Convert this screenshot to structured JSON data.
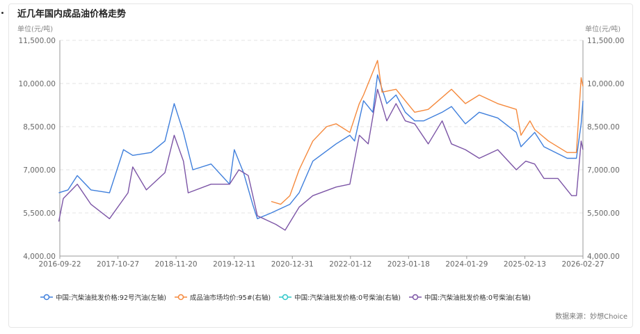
{
  "title": "近几年国内成品油价格走势",
  "unit_left": "单位(元/吨)",
  "unit_right": "单位(元/吨)",
  "source": "数据来源：妙想Choice",
  "chart_data": {
    "type": "line",
    "title": "近几年国内成品油价格走势",
    "ylim": [
      4000,
      11500
    ],
    "y2lim": [
      4000,
      11500
    ],
    "yticks": [
      "4,000.00",
      "5,500.00",
      "7,000.00",
      "8,500.00",
      "10,000.00",
      "11,500.00"
    ],
    "yticks_right": [
      "4,000.00",
      "5,500.00",
      "7,000.00",
      "8,500.00",
      "10,000.00",
      "11,500.00"
    ],
    "xticks": [
      "2016-09-22",
      "2017-10-27",
      "2018-11-20",
      "2019-12-11",
      "2020-12-31",
      "2022-01-12",
      "2023-01-18",
      "2024-01-29",
      "2025-02-13",
      "2026-02-27"
    ],
    "xlim": [
      "2016-09-22",
      "2026-02-27"
    ],
    "grid": true,
    "legend_placement": "bottom",
    "series": [
      {
        "name": "中国:汽柴油批发价格:92号汽油(左轴)",
        "color": "#3f7fdc",
        "axis": "left",
        "x": [
          "2016-09",
          "2016-11",
          "2017-01",
          "2017-04",
          "2017-08",
          "2017-11",
          "2018-01",
          "2018-05",
          "2018-08",
          "2018-10",
          "2018-12",
          "2019-02",
          "2019-06",
          "2019-10",
          "2019-11",
          "2020-01",
          "2020-03",
          "2020-04",
          "2020-07",
          "2020-11",
          "2021-01",
          "2021-04",
          "2021-09",
          "2021-12",
          "2022-01",
          "2022-03",
          "2022-05",
          "2022-06",
          "2022-08",
          "2022-10",
          "2022-12",
          "2023-02",
          "2023-04",
          "2023-08",
          "2023-10",
          "2024-01",
          "2024-04",
          "2024-08",
          "2024-12",
          "2025-01",
          "2025-04",
          "2025-06",
          "2025-11",
          "2026-01",
          "2026-02",
          "2026-02-27"
        ],
        "values": [
          6200,
          6300,
          6800,
          6300,
          6200,
          7700,
          7500,
          7600,
          8000,
          9300,
          8300,
          7000,
          7200,
          6500,
          7700,
          6900,
          5800,
          5300,
          5500,
          5800,
          6200,
          7300,
          7900,
          8200,
          8000,
          9400,
          9000,
          10300,
          9300,
          9600,
          9000,
          8700,
          8700,
          9000,
          9200,
          8600,
          9000,
          8800,
          8300,
          7800,
          8300,
          7800,
          7400,
          7400,
          8600,
          9400
        ]
      },
      {
        "name": "成品油市场均价:95#(右轴)",
        "color": "#f5893c",
        "axis": "right",
        "x": [
          "2020-07",
          "2020-09",
          "2020-11",
          "2021-01",
          "2021-04",
          "2021-07",
          "2021-09",
          "2021-12",
          "2022-02",
          "2022-03",
          "2022-06",
          "2022-07",
          "2022-10",
          "2022-12",
          "2023-02",
          "2023-05",
          "2023-10",
          "2024-01",
          "2024-04",
          "2024-08",
          "2024-12",
          "2025-01",
          "2025-03",
          "2025-04",
          "2025-07",
          "2025-11",
          "2026-01",
          "2026-02",
          "2026-02-27"
        ],
        "values": [
          5900,
          5800,
          6100,
          7000,
          8000,
          8500,
          8600,
          8300,
          9300,
          9600,
          10800,
          9700,
          9800,
          9400,
          9000,
          9100,
          9800,
          9300,
          9600,
          9300,
          9100,
          8200,
          8700,
          8400,
          8000,
          7600,
          7600,
          10200,
          9900
        ]
      },
      {
        "name": "中国:汽柴油批发价格:0号柴油(右轴)",
        "color": "#2ec7c9",
        "axis": "right",
        "x": [],
        "values": []
      },
      {
        "name": "中国:汽柴油批发价格:0号柴油(右轴)",
        "color": "#7c55a6",
        "axis": "right",
        "x": [
          "2016-09",
          "2016-10",
          "2017-01",
          "2017-04",
          "2017-08",
          "2017-12",
          "2018-01",
          "2018-04",
          "2018-08",
          "2018-10",
          "2018-12",
          "2019-01",
          "2019-06",
          "2019-10",
          "2019-12",
          "2020-02",
          "2020-04",
          "2020-08",
          "2020-10",
          "2021-01",
          "2021-04",
          "2021-09",
          "2021-12",
          "2022-02",
          "2022-04",
          "2022-06",
          "2022-08",
          "2022-10",
          "2022-12",
          "2023-02",
          "2023-05",
          "2023-08",
          "2023-10",
          "2024-01",
          "2024-04",
          "2024-08",
          "2024-12",
          "2025-02",
          "2025-04",
          "2025-06",
          "2025-09",
          "2025-12",
          "2026-01",
          "2026-02",
          "2026-02-27"
        ],
        "values": [
          5200,
          6000,
          6500,
          5800,
          5300,
          6200,
          7100,
          6300,
          6900,
          8200,
          7300,
          6200,
          6500,
          6500,
          7000,
          6800,
          5400,
          5100,
          4900,
          5700,
          6100,
          6400,
          6500,
          8200,
          7900,
          9800,
          8700,
          9300,
          8700,
          8600,
          7900,
          8700,
          7900,
          7700,
          7400,
          7700,
          7000,
          7300,
          7200,
          6700,
          6700,
          6100,
          6100,
          8000,
          7700
        ]
      }
    ]
  }
}
